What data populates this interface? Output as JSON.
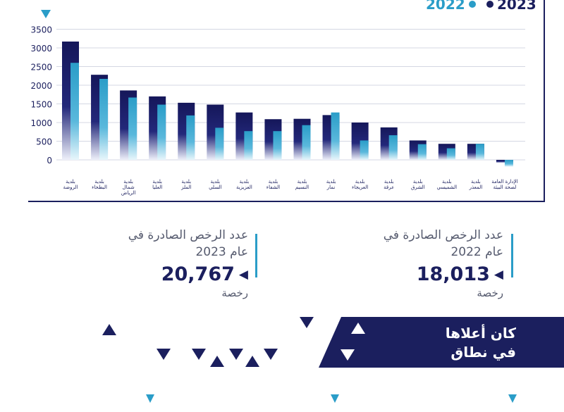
{
  "chart_data": {
    "type": "bar",
    "series": [
      {
        "name": "2023",
        "color": "#1b1f5e",
        "values": [
          3170,
          2280,
          1860,
          1700,
          1530,
          1480,
          1270,
          1090,
          1100,
          1200,
          1000,
          870,
          520,
          430,
          430,
          -80
        ]
      },
      {
        "name": "2022",
        "color": "#2a9dc8",
        "values": [
          2600,
          2170,
          1670,
          1480,
          1190,
          860,
          770,
          770,
          930,
          1270,
          520,
          660,
          420,
          310,
          430,
          -180
        ]
      }
    ],
    "categories": [
      [
        "بلدية",
        "الروضة"
      ],
      [
        "بلدية",
        "البطحاء"
      ],
      [
        "بلدية",
        "شمال",
        "الرياض"
      ],
      [
        "بلدية",
        "العليا"
      ],
      [
        "بلدية",
        "الملز"
      ],
      [
        "بلدية",
        "السلي"
      ],
      [
        "بلدية",
        "العزيزية"
      ],
      [
        "بلدية",
        "الشفاء"
      ],
      [
        "بلدية",
        "النسيم"
      ],
      [
        "بلدية",
        "نمار"
      ],
      [
        "بلدية",
        "العريجاء"
      ],
      [
        "بلدية",
        "عرقة"
      ],
      [
        "بلدية",
        "الشرق"
      ],
      [
        "بلدية",
        "الشميسي"
      ],
      [
        "بلدية",
        "المعذر"
      ],
      [
        "الإدارة العامة",
        "لصحة البيئة"
      ]
    ],
    "y_ticks": [
      "3500",
      "3000",
      "2500",
      "2000",
      "1500",
      "1000",
      "500",
      "0"
    ],
    "ylim": [
      -200,
      3500
    ],
    "grid": true,
    "legend": "top-right"
  },
  "legend": {
    "y2023": "2023",
    "y2022": "2022"
  },
  "stats": {
    "s2023": {
      "label": "عدد الرخص الصادرة في عام 2023",
      "value": "20,767",
      "unit": "رخصة"
    },
    "s2022": {
      "label": "عدد الرخص الصادرة في عام 2022",
      "value": "18,013",
      "unit": "رخصة"
    }
  },
  "banner": {
    "line1": "كان أعلاها",
    "line2": "في نطاق"
  },
  "colors": {
    "navy": "#1b1f5e",
    "cyan": "#2a9dc8"
  }
}
